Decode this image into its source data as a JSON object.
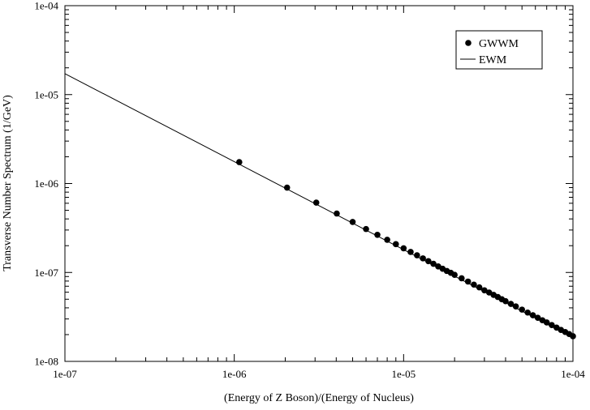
{
  "chart_data": {
    "type": "scatter",
    "title": "",
    "xlabel": "(Energy of Z Boson)/(Energy of Nucleus)",
    "ylabel": "Transverse Number Spectrum (1/GeV)",
    "xscale": "log",
    "yscale": "log",
    "xlim": [
      1e-07,
      0.0001
    ],
    "ylim": [
      1e-08,
      0.0001
    ],
    "x_ticks": [
      {
        "value": 1e-07,
        "label": "1e-07"
      },
      {
        "value": 1e-06,
        "label": "1e-06"
      },
      {
        "value": 1e-05,
        "label": "1e-05"
      },
      {
        "value": 0.0001,
        "label": "1e-04"
      }
    ],
    "y_ticks": [
      {
        "value": 1e-08,
        "label": "1e-08"
      },
      {
        "value": 1e-07,
        "label": "1e-07"
      },
      {
        "value": 1e-06,
        "label": "1e-06"
      },
      {
        "value": 1e-05,
        "label": "1e-05"
      },
      {
        "value": 0.0001,
        "label": "1e-04"
      }
    ],
    "grid": false,
    "legend_position": "top-right",
    "series": [
      {
        "name": "GWWM",
        "kind": "markers",
        "color": "#000000",
        "x": [
          1.07e-06,
          2.05e-06,
          3.05e-06,
          4.03e-06,
          5e-06,
          6e-06,
          7e-06,
          8e-06,
          9e-06,
          1e-05,
          1.1e-05,
          1.2e-05,
          1.3e-05,
          1.4e-05,
          1.5e-05,
          1.6e-05,
          1.7e-05,
          1.8e-05,
          1.9e-05,
          2e-05,
          2.2e-05,
          2.4e-05,
          2.6e-05,
          2.8e-05,
          3e-05,
          3.2e-05,
          3.4e-05,
          3.6e-05,
          3.8e-05,
          4e-05,
          4.3e-05,
          4.6e-05,
          5e-05,
          5.4e-05,
          5.8e-05,
          6.2e-05,
          6.6e-05,
          7e-05,
          7.5e-05,
          8e-05,
          8.5e-05,
          9e-05,
          9.5e-05,
          0.0001
        ],
        "y": [
          1.74e-06,
          9e-07,
          6.1e-07,
          4.6e-07,
          3.7e-07,
          3.08e-07,
          2.65e-07,
          2.33e-07,
          2.08e-07,
          1.87e-07,
          1.7e-07,
          1.56e-07,
          1.44e-07,
          1.34e-07,
          1.25e-07,
          1.17e-07,
          1.1e-07,
          1.04e-07,
          9.9e-08,
          9.4e-08,
          8.6e-08,
          7.9e-08,
          7.3e-08,
          6.8e-08,
          6.3e-08,
          5.95e-08,
          5.6e-08,
          5.3e-08,
          5e-08,
          4.75e-08,
          4.43e-08,
          4.15e-08,
          3.82e-08,
          3.54e-08,
          3.3e-08,
          3.09e-08,
          2.9e-08,
          2.74e-08,
          2.56e-08,
          2.4e-08,
          2.26e-08,
          2.14e-08,
          2.03e-08,
          1.92e-08
        ]
      },
      {
        "name": "EWM",
        "kind": "line",
        "color": "#000000",
        "x": [
          1e-07,
          0.0001
        ],
        "y": [
          1.72e-05,
          1.85e-08
        ]
      }
    ]
  }
}
